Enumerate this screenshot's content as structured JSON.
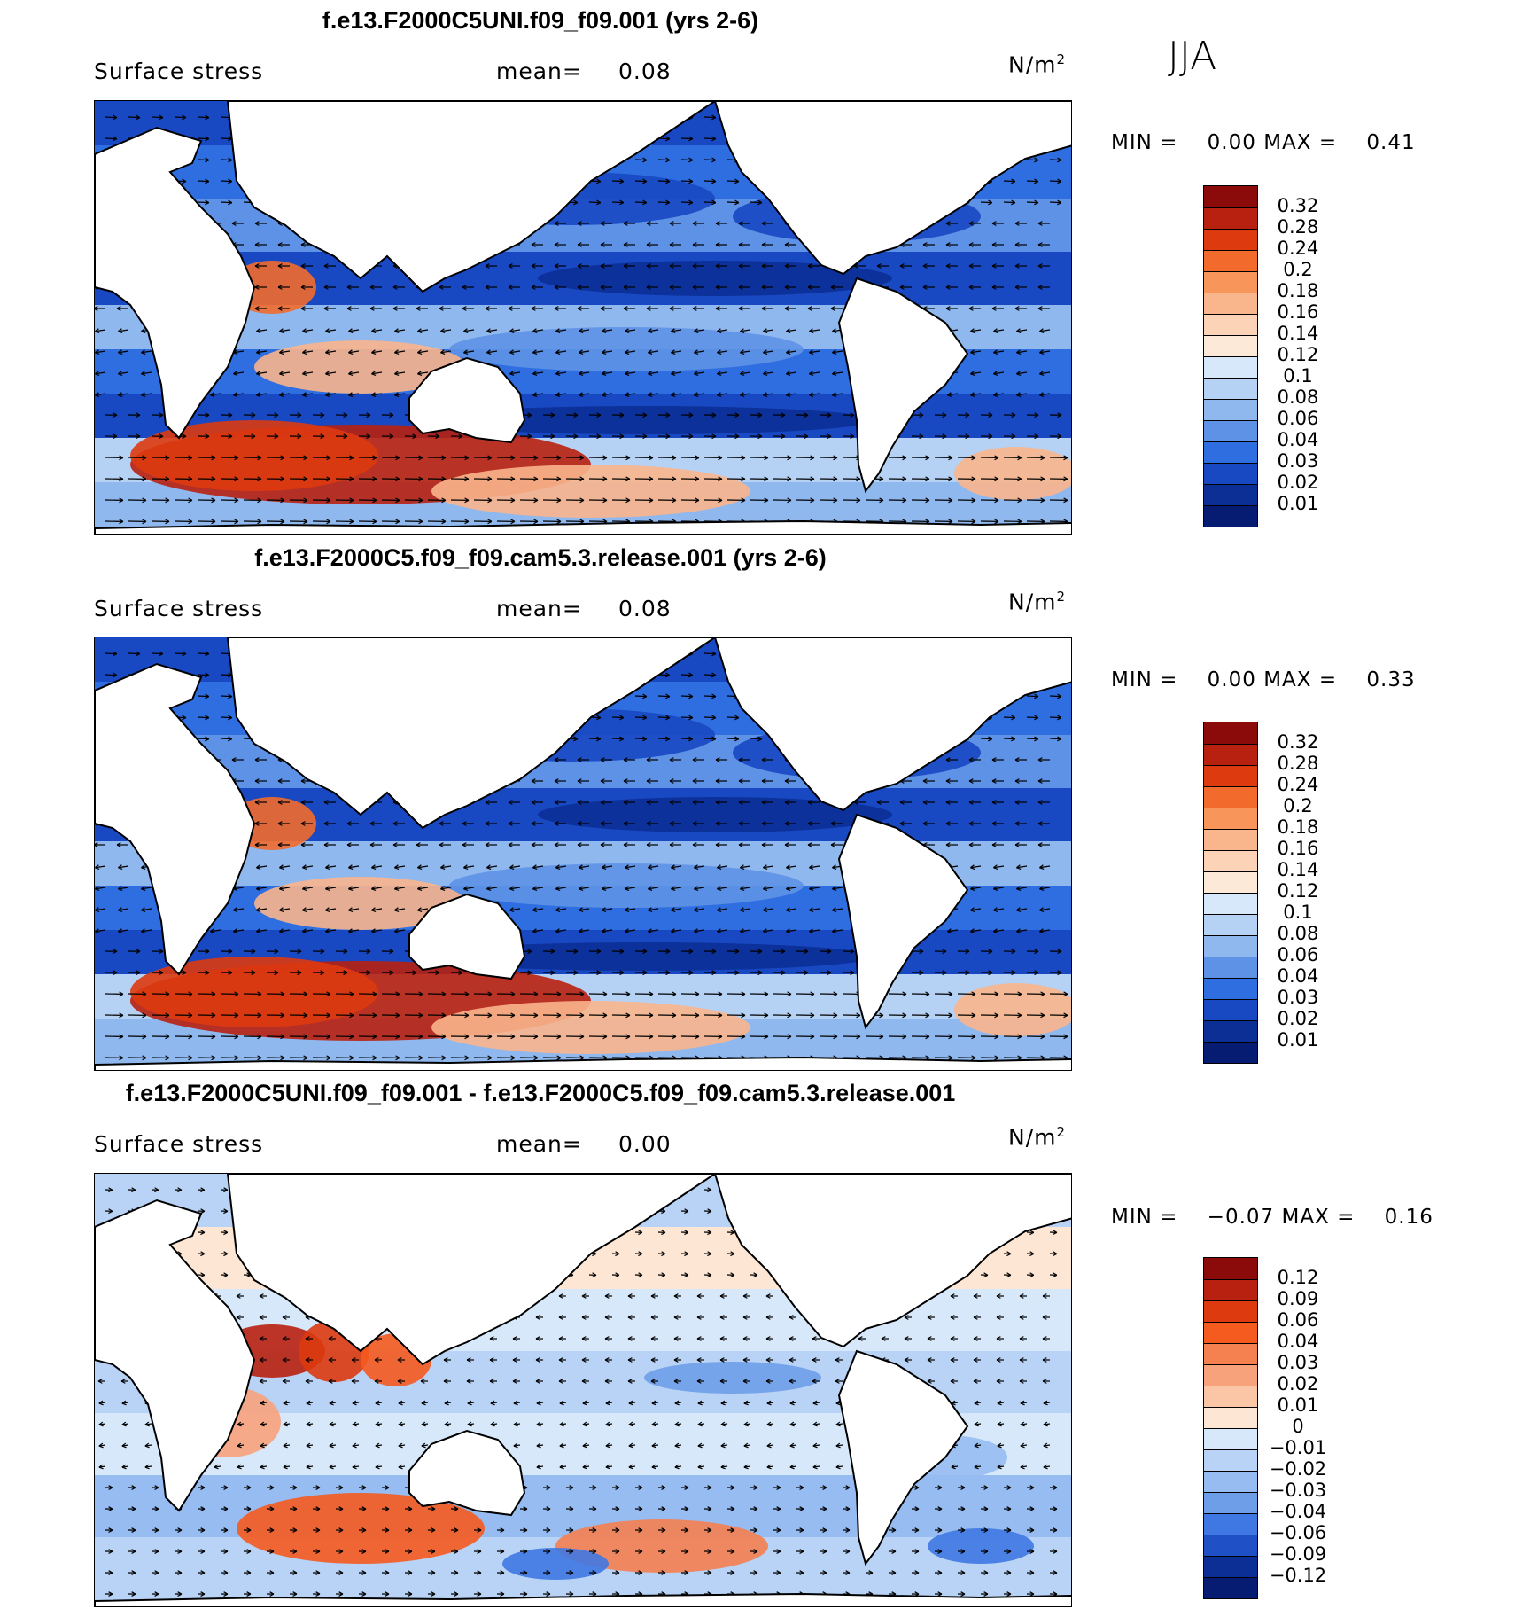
{
  "season": "JJA",
  "panels": [
    {
      "title": "f.e13.F2000C5UNI.f09_f09.001 (yrs 2-6)",
      "variable": "Surface stress",
      "mean_label": "mean=",
      "mean_value": "0.08",
      "units": "N/m",
      "units_exp": "2",
      "min_label": "MIN =",
      "min_value": "0.00",
      "max_label": "MAX =",
      "max_value": "0.41"
    },
    {
      "title": "f.e13.F2000C5.f09_f09.cam5.3.release.001 (yrs 2-6)",
      "variable": "Surface stress",
      "mean_label": "mean=",
      "mean_value": "0.08",
      "units": "N/m",
      "units_exp": "2",
      "min_label": "MIN =",
      "min_value": "0.00",
      "max_label": "MAX =",
      "max_value": "0.33"
    },
    {
      "title": "f.e13.F2000C5UNI.f09_f09.001 - f.e13.F2000C5.f09_f09.cam5.3.release.001",
      "variable": "Surface stress",
      "mean_label": "mean=",
      "mean_value": "0.00",
      "units": "N/m",
      "units_exp": "2",
      "min_label": "MIN =",
      "min_value": "−0.07",
      "max_label": "MAX =",
      "max_value": "0.16"
    }
  ],
  "legend_abs": {
    "levels": [
      "0.32",
      "0.28",
      "0.24",
      "0.2",
      "0.18",
      "0.16",
      "0.14",
      "0.12",
      "0.1",
      "0.08",
      "0.06",
      "0.04",
      "0.03",
      "0.02",
      "0.01"
    ],
    "colors": [
      "#8b0a0a",
      "#b8200f",
      "#dd3a10",
      "#f26a2c",
      "#f7955a",
      "#f9b58c",
      "#fcd3b6",
      "#fde9d8",
      "#d6e8fa",
      "#b5d2f5",
      "#8fb8ef",
      "#5e92e6",
      "#2e6ee0",
      "#1848c2",
      "#0c2f96",
      "#061b72"
    ]
  },
  "legend_diff": {
    "levels": [
      "0.12",
      "0.09",
      "0.06",
      "0.04",
      "0.03",
      "0.02",
      "0.01",
      "0",
      "−0.01",
      "−0.02",
      "−0.03",
      "−0.04",
      "−0.06",
      "−0.09",
      "−0.12"
    ],
    "colors": [
      "#8b0a0a",
      "#b8200f",
      "#dd3a10",
      "#f55a1f",
      "#f58050",
      "#f8a27c",
      "#fbc6a6",
      "#fde6d4",
      "#d6e8fa",
      "#b8d3f5",
      "#96bcf1",
      "#6f9ee9",
      "#3f78e2",
      "#1f50c6",
      "#0c2f96",
      "#061b72"
    ]
  }
}
